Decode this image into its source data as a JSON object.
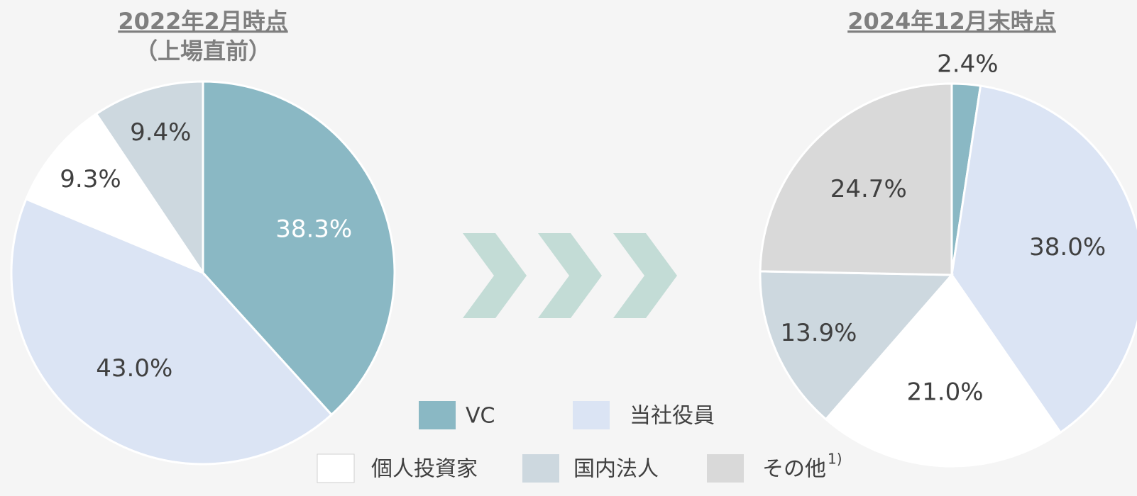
{
  "chart_data": [
    {
      "type": "pie",
      "title": "2022年2月時点",
      "subtitle": "（上場直前）",
      "categories": [
        "VC",
        "当社役員",
        "個人投資家",
        "国内法人"
      ],
      "values": [
        38.3,
        43.0,
        9.3,
        9.4
      ],
      "value_labels": [
        "38.3%",
        "43.0%",
        "9.3%",
        "9.4%"
      ],
      "colors": [
        "#8ab8c4",
        "#dbe4f4",
        "#ffffff",
        "#cdd8df"
      ]
    },
    {
      "type": "pie",
      "title": "2024年12月末時点",
      "categories": [
        "VC",
        "当社役員",
        "個人投資家",
        "国内法人",
        "その他"
      ],
      "values": [
        2.4,
        38.0,
        21.0,
        13.9,
        24.7
      ],
      "value_labels": [
        "2.4%",
        "38.0%",
        "21.0%",
        "13.9%",
        "24.7%"
      ],
      "colors": [
        "#8ab8c4",
        "#dbe4f4",
        "#ffffff",
        "#cdd8df",
        "#d9d9d9"
      ],
      "footnote_marker": "1)"
    }
  ]
}
